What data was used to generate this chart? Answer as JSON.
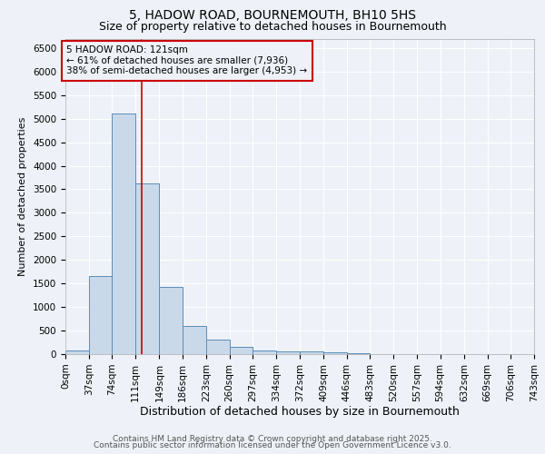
{
  "title1": "5, HADOW ROAD, BOURNEMOUTH, BH10 5HS",
  "title2": "Size of property relative to detached houses in Bournemouth",
  "xlabel": "Distribution of detached houses by size in Bournemouth",
  "ylabel": "Number of detached properties",
  "bar_edges": [
    0,
    37,
    74,
    111,
    149,
    186,
    223,
    260,
    297,
    334,
    372,
    409,
    446,
    483,
    520,
    557,
    594,
    632,
    669,
    706,
    743
  ],
  "bar_heights": [
    75,
    1650,
    5100,
    3620,
    1420,
    600,
    310,
    145,
    80,
    60,
    60,
    30,
    15,
    5,
    5,
    3,
    2,
    1,
    0,
    0
  ],
  "bar_color": "#c9d9ea",
  "bar_edge_color": "#5b8db8",
  "ylim": [
    0,
    6700
  ],
  "yticks": [
    0,
    500,
    1000,
    1500,
    2000,
    2500,
    3000,
    3500,
    4000,
    4500,
    5000,
    5500,
    6000,
    6500
  ],
  "vline_x": 121,
  "vline_color": "#cc0000",
  "annotation_text": "5 HADOW ROAD: 121sqm\n← 61% of detached houses are smaller (7,936)\n38% of semi-detached houses are larger (4,953) →",
  "annotation_bbox_color": "#cc0000",
  "footer1": "Contains HM Land Registry data © Crown copyright and database right 2025.",
  "footer2": "Contains public sector information licensed under the Open Government Licence v3.0.",
  "background_color": "#eef2f8",
  "grid_color": "#ffffff",
  "title1_fontsize": 10,
  "title2_fontsize": 9,
  "xlabel_fontsize": 9,
  "ylabel_fontsize": 8,
  "tick_fontsize": 7.5,
  "annotation_fontsize": 7.5,
  "footer_fontsize": 6.5
}
